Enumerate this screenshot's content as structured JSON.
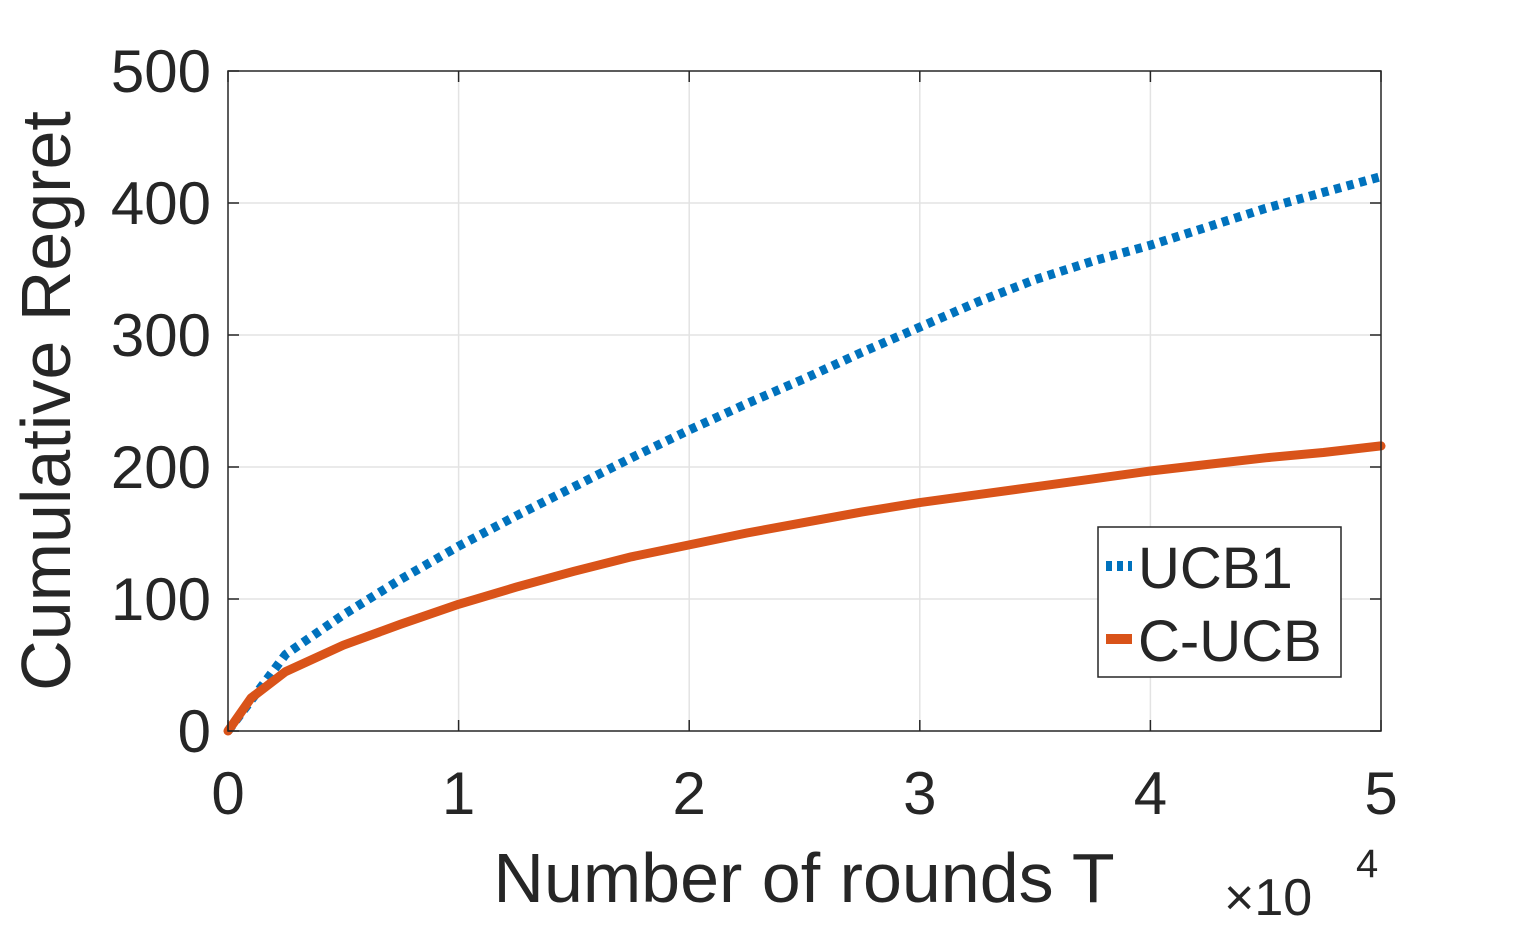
{
  "chart_data": {
    "type": "line",
    "xlabel": "Number of rounds T",
    "ylabel": "Cumulative Regret",
    "x_multiplier_base": "×10",
    "x_multiplier_exp": "4",
    "xlim": [
      0,
      50000
    ],
    "ylim": [
      0,
      500
    ],
    "xticks": [
      0,
      10000,
      20000,
      30000,
      40000,
      50000
    ],
    "xtick_labels": [
      "0",
      "1",
      "2",
      "3",
      "4",
      "5"
    ],
    "yticks": [
      0,
      100,
      200,
      300,
      400,
      500
    ],
    "ytick_labels": [
      "0",
      "100",
      "200",
      "300",
      "400",
      "500"
    ],
    "grid": true,
    "legend_position": "bottom-right",
    "series": [
      {
        "name": "UCB1",
        "color": "#0072BD",
        "style": "dotted",
        "x": [
          0,
          2500,
          5000,
          7500,
          10000,
          12500,
          15000,
          17500,
          20000,
          22500,
          25000,
          27500,
          30000,
          32500,
          35000,
          37500,
          40000,
          42500,
          45000,
          47500,
          50000
        ],
        "y": [
          0,
          58,
          88,
          115,
          140,
          163,
          185,
          207,
          228,
          248,
          267,
          287,
          306,
          325,
          342,
          356,
          368,
          382,
          396,
          408,
          420
        ]
      },
      {
        "name": "C-UCB",
        "color": "#D95319",
        "style": "solid",
        "x": [
          0,
          1000,
          2500,
          5000,
          7500,
          10000,
          12500,
          15000,
          17500,
          20000,
          22500,
          25000,
          27500,
          30000,
          32500,
          35000,
          37500,
          40000,
          42500,
          45000,
          47500,
          50000
        ],
        "y": [
          0,
          25,
          45,
          65,
          81,
          96,
          109,
          121,
          132,
          141,
          150,
          158,
          166,
          173,
          179,
          185,
          191,
          197,
          202,
          207,
          211,
          216
        ]
      }
    ]
  }
}
